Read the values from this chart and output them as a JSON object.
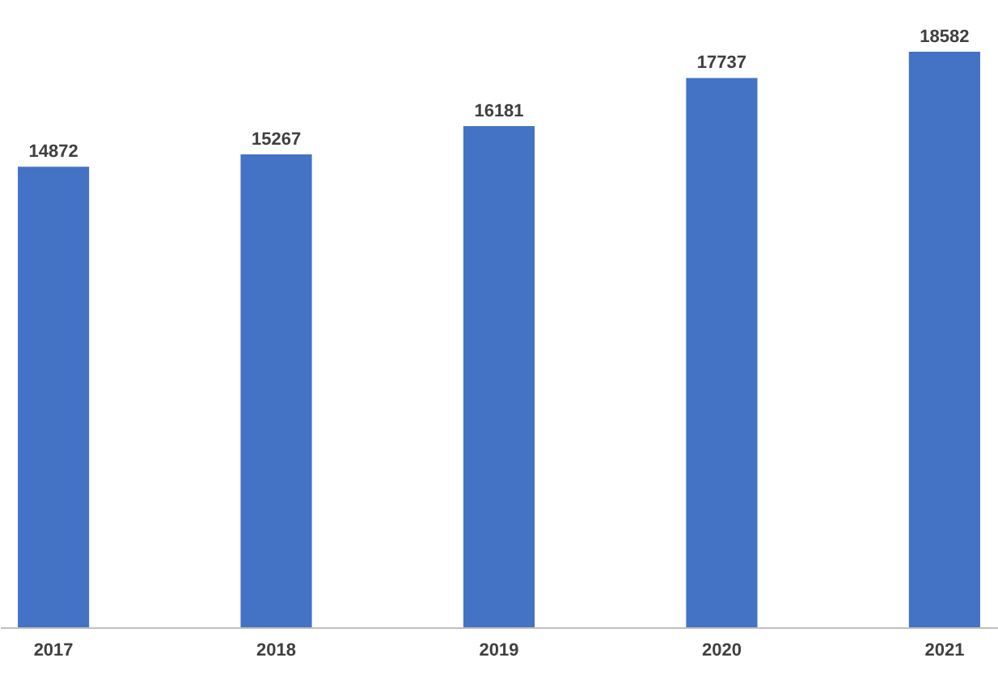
{
  "chart_data": {
    "type": "bar",
    "categories": [
      "2017",
      "2018",
      "2019",
      "2020",
      "2021"
    ],
    "values": [
      14872,
      15267,
      16181,
      17737,
      18582
    ],
    "color": "#4472c4",
    "data_labels": true
  }
}
